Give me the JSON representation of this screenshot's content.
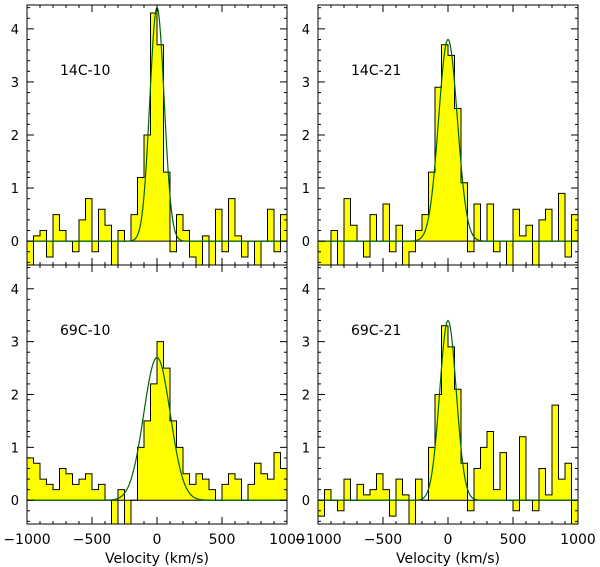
{
  "chart_data": {
    "type": "step-histogram",
    "layout": "2x2 panels with shared axes",
    "shared_xlabel": "Velocity (km/s)",
    "xlim": [
      -1000,
      1000
    ],
    "x_ticks": [
      -1000,
      -500,
      0,
      500,
      1000
    ],
    "y_ticks": [
      0,
      1,
      2,
      3,
      4
    ],
    "histogram_fill_color": "#ffff00",
    "fit_color": "#006400",
    "panels": [
      {
        "label": "14C-10",
        "ylim": [
          -0.45,
          4.45
        ],
        "x": [
          -1000,
          -950,
          -900,
          -850,
          -800,
          -750,
          -700,
          -650,
          -600,
          -550,
          -500,
          -450,
          -400,
          -350,
          -300,
          -250,
          -200,
          -150,
          -100,
          -50,
          0,
          50,
          100,
          150,
          200,
          250,
          300,
          350,
          400,
          450,
          500,
          550,
          600,
          650,
          700,
          750,
          800,
          850,
          900,
          950,
          1000
        ],
        "values": [
          -0.45,
          0.1,
          0.2,
          -0.3,
          0.5,
          0.2,
          0.0,
          -0.2,
          0.4,
          0.8,
          -0.2,
          0.6,
          0.3,
          -0.45,
          0.2,
          0.0,
          0.5,
          1.2,
          2.0,
          4.3,
          3.7,
          1.3,
          -0.2,
          0.5,
          0.2,
          -0.3,
          -0.45,
          0.1,
          -0.45,
          0.6,
          -0.2,
          0.8,
          0.1,
          -0.3,
          0.0,
          -0.45,
          0.0,
          0.6,
          -0.2,
          0.5
        ],
        "fit": {
          "amplitude": 4.4,
          "center": 0,
          "fwhm": 130
        }
      },
      {
        "label": "14C-21",
        "ylim": [
          -0.45,
          4.45
        ],
        "x": [
          -1000,
          -950,
          -900,
          -850,
          -800,
          -750,
          -700,
          -650,
          -600,
          -550,
          -500,
          -450,
          -400,
          -350,
          -300,
          -250,
          -200,
          -150,
          -100,
          -50,
          0,
          50,
          100,
          150,
          200,
          250,
          300,
          350,
          400,
          450,
          500,
          550,
          600,
          650,
          700,
          750,
          800,
          850,
          900,
          950,
          1000
        ],
        "values": [
          -0.45,
          -0.45,
          0.2,
          -0.45,
          0.8,
          0.3,
          0.0,
          -0.3,
          0.5,
          0.0,
          0.7,
          -0.2,
          0.3,
          -0.45,
          -0.2,
          0.2,
          0.5,
          1.3,
          2.9,
          3.7,
          3.5,
          2.5,
          1.1,
          -0.2,
          0.7,
          0.0,
          0.7,
          -0.2,
          0.0,
          -0.45,
          0.6,
          0.1,
          0.3,
          -0.45,
          0.4,
          0.6,
          0.0,
          0.9,
          -0.3,
          0.5
        ],
        "fit": {
          "amplitude": 3.8,
          "center": 0,
          "fwhm": 170
        }
      },
      {
        "label": "69C-10",
        "ylim": [
          -0.45,
          4.45
        ],
        "x": [
          -1000,
          -950,
          -900,
          -850,
          -800,
          -750,
          -700,
          -650,
          -600,
          -550,
          -500,
          -450,
          -400,
          -350,
          -300,
          -250,
          -200,
          -150,
          -100,
          -50,
          0,
          50,
          100,
          150,
          200,
          250,
          300,
          350,
          400,
          450,
          500,
          550,
          600,
          650,
          700,
          750,
          800,
          850,
          900,
          950,
          1000
        ],
        "values": [
          0.8,
          0.7,
          0.4,
          0.3,
          0.2,
          0.6,
          0.5,
          0.3,
          0.4,
          0.5,
          0.2,
          0.3,
          0.0,
          -0.45,
          0.2,
          -0.45,
          0.0,
          1.0,
          1.5,
          2.2,
          3.0,
          2.5,
          1.5,
          1.0,
          0.5,
          0.3,
          0.5,
          0.4,
          0.2,
          0.0,
          0.3,
          0.5,
          0.4,
          0.0,
          0.3,
          0.7,
          0.5,
          0.4,
          0.9,
          0.6
        ],
        "fit": {
          "amplitude": 2.7,
          "center": 0,
          "fwhm": 240
        }
      },
      {
        "label": "69C-21",
        "ylim": [
          -0.45,
          4.45
        ],
        "x": [
          -1000,
          -950,
          -900,
          -850,
          -800,
          -750,
          -700,
          -650,
          -600,
          -550,
          -500,
          -450,
          -400,
          -350,
          -300,
          -250,
          -200,
          -150,
          -100,
          -50,
          0,
          50,
          100,
          150,
          200,
          250,
          300,
          350,
          400,
          450,
          500,
          550,
          600,
          650,
          700,
          750,
          800,
          850,
          900,
          950,
          1000
        ],
        "values": [
          -0.3,
          0.2,
          0.0,
          -0.2,
          0.4,
          0.0,
          0.3,
          0.1,
          0.2,
          0.5,
          0.2,
          -0.3,
          0.4,
          0.1,
          -0.45,
          0.4,
          0.0,
          1.0,
          2.0,
          3.3,
          2.9,
          2.1,
          0.7,
          -0.2,
          0.6,
          1.0,
          1.3,
          0.2,
          0.9,
          0.0,
          -0.2,
          1.2,
          0.0,
          -0.2,
          0.6,
          0.1,
          1.8,
          0.4,
          0.7,
          -0.45
        ],
        "fit": {
          "amplitude": 3.4,
          "center": 0,
          "fwhm": 150
        }
      }
    ]
  }
}
